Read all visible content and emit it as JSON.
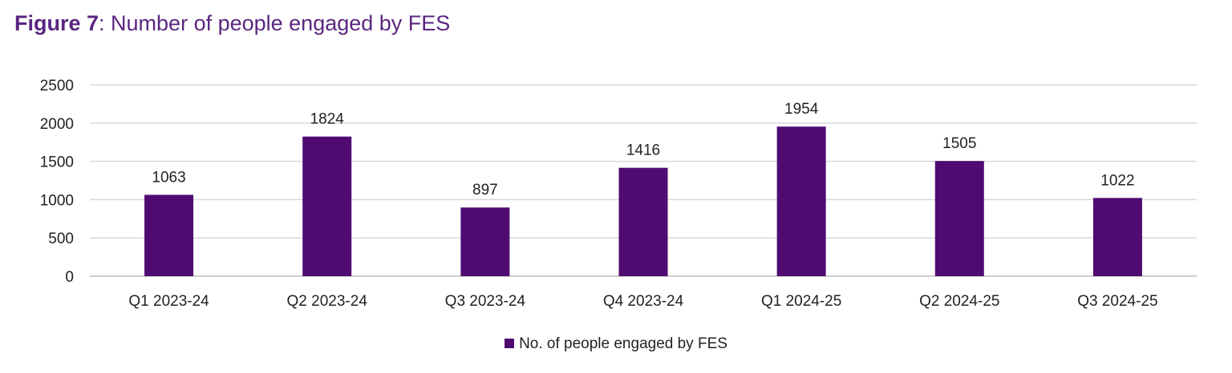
{
  "title": {
    "label": "Figure 7",
    "text": ": Number of people engaged by FES"
  },
  "chart_data": {
    "type": "bar",
    "title": "Figure 7: Number of people engaged by FES",
    "categories": [
      "Q1 2023-24",
      "Q2 2023-24",
      "Q3 2023-24",
      "Q4 2023-24",
      "Q1 2024-25",
      "Q2 2024-25",
      "Q3 2024-25"
    ],
    "series": [
      {
        "name": "No. of people engaged by FES",
        "values": [
          1063,
          1824,
          897,
          1416,
          1954,
          1505,
          1022
        ],
        "color": "#500b72"
      }
    ],
    "yticks": [
      0,
      500,
      1000,
      1500,
      2000,
      2500
    ],
    "ylim": [
      0,
      2500
    ],
    "grid": true,
    "legend": "bottom",
    "xlabel": "",
    "ylabel": ""
  }
}
